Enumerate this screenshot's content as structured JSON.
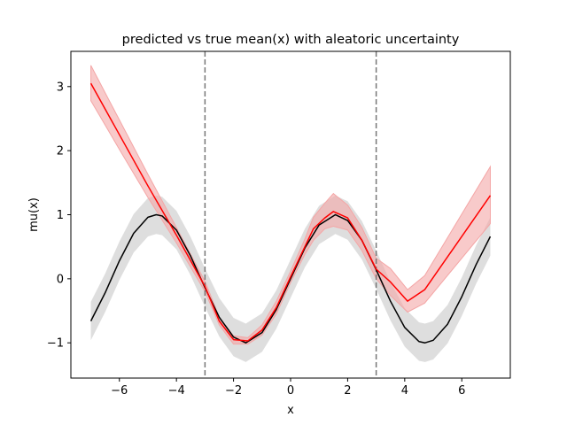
{
  "chart_data": {
    "type": "line",
    "title": "predicted vs true mean(x) with aleatoric uncertainty",
    "xlabel": "x",
    "ylabel": "mu(x)",
    "xlim": [
      -7.7,
      7.7
    ],
    "ylim": [
      -1.55,
      3.55
    ],
    "xticks": [
      -6,
      -4,
      -2,
      0,
      2,
      4,
      6
    ],
    "yticks": [
      -1,
      0,
      1,
      2,
      3
    ],
    "grid": false,
    "legend": "none",
    "vlines": [
      -3,
      3
    ],
    "series": [
      {
        "role": "true-mean",
        "color": "#000000",
        "band_color": "#c8c8c8",
        "band_halfwidth": 0.3,
        "x": [
          -7,
          -6.5,
          -6,
          -5.5,
          -5,
          -4.71,
          -4.5,
          -4,
          -3.5,
          -3,
          -2.5,
          -2,
          -1.57,
          -1,
          -0.5,
          0,
          0.5,
          1,
          1.57,
          2,
          2.5,
          3,
          3.5,
          4,
          4.5,
          4.71,
          5,
          5.5,
          6,
          6.5,
          7
        ],
        "y": [
          -0.66,
          -0.22,
          0.28,
          0.71,
          0.96,
          1.0,
          0.98,
          0.76,
          0.35,
          -0.14,
          -0.6,
          -0.91,
          -1.0,
          -0.84,
          -0.48,
          0.0,
          0.48,
          0.84,
          1.0,
          0.91,
          0.6,
          0.14,
          -0.35,
          -0.76,
          -0.98,
          -1.0,
          -0.96,
          -0.71,
          -0.28,
          0.22,
          0.66
        ]
      },
      {
        "role": "predicted-mean",
        "color": "#ff0000",
        "band_color": "#f4a6a6",
        "x": [
          -7,
          -6,
          -5,
          -4,
          -3,
          -2.5,
          -2,
          -1.5,
          -1,
          -0.5,
          0,
          0.5,
          0.8,
          1.2,
          1.5,
          2,
          2.5,
          3,
          3.5,
          4.1,
          4.7,
          7
        ],
        "y": [
          3.05,
          2.25,
          1.45,
          0.68,
          -0.12,
          -0.66,
          -0.95,
          -0.97,
          -0.8,
          -0.45,
          0.03,
          0.5,
          0.78,
          0.95,
          1.05,
          0.95,
          0.6,
          0.15,
          -0.05,
          -0.35,
          -0.17,
          1.3
        ],
        "lower": [
          2.78,
          2.02,
          1.27,
          0.56,
          -0.2,
          -0.72,
          -1.02,
          -1.02,
          -0.88,
          -0.55,
          -0.06,
          0.38,
          0.6,
          0.78,
          0.82,
          0.76,
          0.44,
          0.0,
          -0.26,
          -0.52,
          -0.38,
          0.86
        ],
        "upper": [
          3.33,
          2.48,
          1.63,
          0.8,
          -0.04,
          -0.6,
          -0.89,
          -0.92,
          -0.72,
          -0.35,
          0.12,
          0.62,
          0.96,
          1.18,
          1.33,
          1.15,
          0.8,
          0.32,
          0.16,
          -0.17,
          0.05,
          1.75
        ]
      }
    ]
  }
}
